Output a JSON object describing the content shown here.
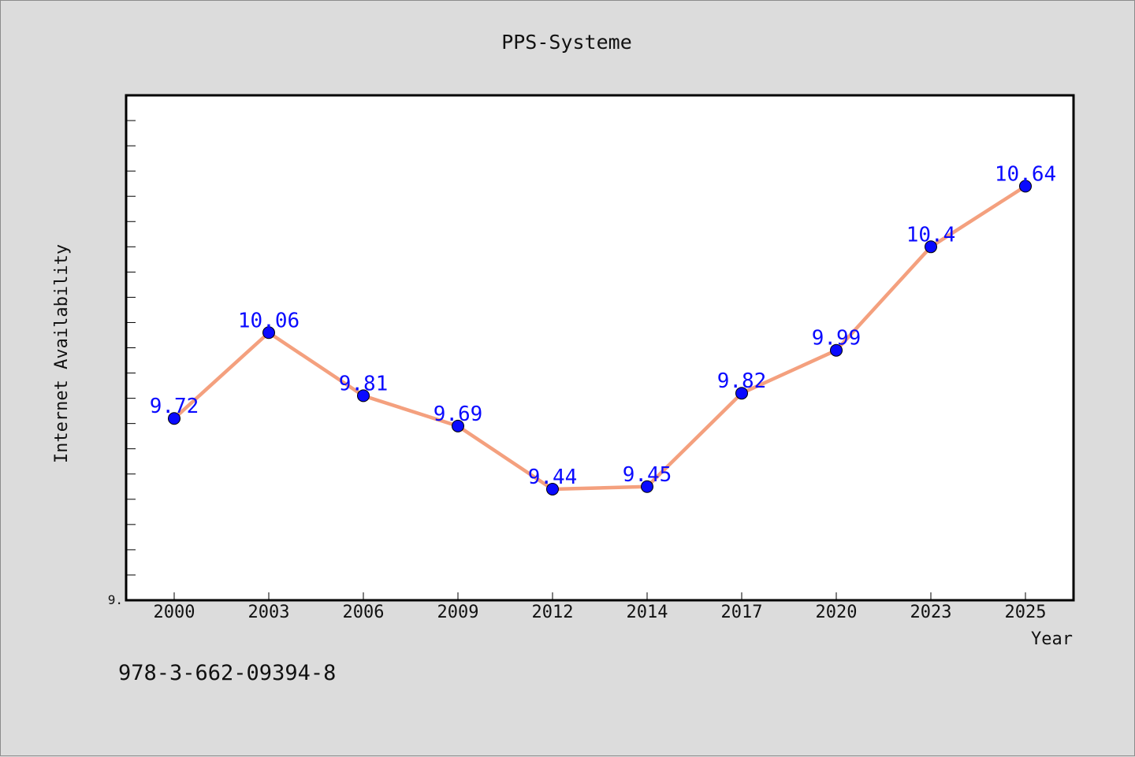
{
  "chart_data": {
    "type": "line",
    "title": "PPS-Systeme",
    "xlabel": "Year",
    "ylabel": "Internet Availability",
    "categories": [
      "2000",
      "2003",
      "2006",
      "2009",
      "2012",
      "2014",
      "2017",
      "2020",
      "2023",
      "2025"
    ],
    "series": [
      {
        "values": [
          9.72,
          10.06,
          9.81,
          9.69,
          9.44,
          9.45,
          9.82,
          9.99,
          10.4,
          10.64
        ],
        "labels": [
          "9.72",
          "10.06",
          "9.81",
          "9.69",
          "9.44",
          "9.45",
          "9.82",
          "9.99",
          "10.4",
          "10.64"
        ],
        "line_color": "#f4a07e",
        "marker_color": "#0a0aff"
      }
    ],
    "ylim": [
      9.0,
      11.0
    ],
    "y_tick_labels": [
      "9."
    ],
    "grid": false,
    "legend": "none"
  },
  "footer": {
    "isbn": "978-3-662-09394-8"
  }
}
